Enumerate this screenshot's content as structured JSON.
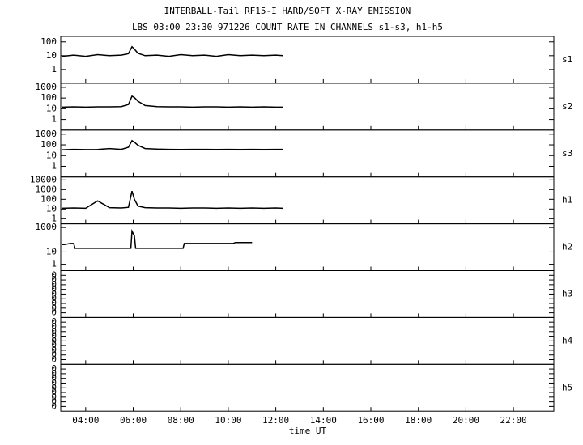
{
  "chart_data": {
    "type": "line",
    "title": "INTERBALL-Tail RF15-I HARD/SOFT X-RAY EMISSION",
    "subtitle": "LBS 03:00 23:30 971226  COUNT RATE IN CHANNELS s1-s3, h1-h5",
    "xlabel": "time UT",
    "xlim": [
      2.95,
      23.7
    ],
    "xticks": [
      {
        "value": 4,
        "label": "04:00"
      },
      {
        "value": 6,
        "label": "06:00"
      },
      {
        "value": 8,
        "label": "08:00"
      },
      {
        "value": 10,
        "label": "10:00"
      },
      {
        "value": 12,
        "label": "12:00"
      },
      {
        "value": 14,
        "label": "14:00"
      },
      {
        "value": 16,
        "label": "16:00"
      },
      {
        "value": 18,
        "label": "18:00"
      },
      {
        "value": 20,
        "label": "20:00"
      },
      {
        "value": 22,
        "label": "22:00"
      }
    ],
    "color": "#000000",
    "panels": [
      {
        "name": "s1",
        "log": true,
        "ylim": [
          0.1,
          250
        ],
        "yticks": [
          100,
          10,
          1
        ],
        "x": [
          3.0,
          3.5,
          4.0,
          4.5,
          5.0,
          5.5,
          5.8,
          5.95,
          6.05,
          6.2,
          6.5,
          7,
          7.5,
          8,
          8.5,
          9,
          9.5,
          10,
          10.5,
          11,
          11.5,
          12,
          12.3
        ],
        "values": [
          9,
          11,
          9,
          12,
          10,
          11,
          14,
          45,
          30,
          15,
          10,
          11,
          9,
          12,
          10,
          11,
          9,
          12,
          10,
          11,
          10,
          11,
          10
        ]
      },
      {
        "name": "s2",
        "log": true,
        "ylim": [
          0.1,
          2400
        ],
        "yticks": [
          1000,
          100,
          10,
          1
        ],
        "x": [
          3.0,
          3.5,
          4.0,
          4.5,
          5.0,
          5.5,
          5.8,
          5.95,
          6.05,
          6.2,
          6.5,
          7,
          7.5,
          8,
          8.5,
          9,
          9.5,
          10,
          10.5,
          11,
          11.5,
          12,
          12.3
        ],
        "values": [
          14,
          15,
          14,
          15,
          15,
          16,
          25,
          150,
          110,
          50,
          20,
          16,
          15,
          15,
          14,
          15,
          15,
          14,
          15,
          14,
          15,
          14,
          14
        ]
      },
      {
        "name": "s3",
        "log": true,
        "ylim": [
          0.1,
          2400
        ],
        "yticks": [
          1000,
          100,
          10,
          1
        ],
        "x": [
          3.0,
          3.5,
          4.0,
          4.5,
          5.0,
          5.5,
          5.8,
          5.95,
          6.05,
          6.2,
          6.5,
          7,
          7.5,
          8,
          8.5,
          9,
          9.5,
          10,
          10.5,
          11,
          11.5,
          12,
          12.3
        ],
        "values": [
          35,
          38,
          36,
          37,
          45,
          38,
          60,
          250,
          180,
          90,
          45,
          40,
          38,
          37,
          38,
          38,
          37,
          38,
          37,
          38,
          37,
          38,
          38
        ]
      },
      {
        "name": "h1",
        "log": true,
        "ylim": [
          0.3,
          20000
        ],
        "yticks": [
          10000,
          1000,
          100,
          10,
          1
        ],
        "x": [
          3.0,
          3.5,
          4.0,
          4.5,
          5.0,
          5.5,
          5.8,
          5.95,
          6.05,
          6.2,
          6.5,
          7,
          7.5,
          8,
          8.5,
          9,
          9.5,
          10,
          10.5,
          11,
          11.5,
          12,
          12.3
        ],
        "values": [
          12,
          13,
          12,
          70,
          14,
          13,
          15,
          700,
          100,
          20,
          14,
          13,
          13,
          12,
          13,
          13,
          12,
          13,
          12,
          13,
          12,
          13,
          12
        ]
      },
      {
        "name": "h2",
        "log": true,
        "ylim": [
          0.3,
          2000
        ],
        "yticks": [
          1000,
          10,
          1
        ],
        "x": [
          3.0,
          3.1,
          3.35,
          3.5,
          3.55,
          5.9,
          5.95,
          6.05,
          6.1,
          8.1,
          8.15,
          10.2,
          10.3,
          10.5,
          10.7,
          10.9,
          11.0
        ],
        "values": [
          40,
          40,
          50,
          50,
          20,
          20,
          500,
          200,
          20,
          20,
          50,
          50,
          60,
          60,
          60,
          60,
          60
        ]
      },
      {
        "name": "h3",
        "log": false,
        "ylim": [
          0,
          0.01
        ],
        "yticks": [
          {
            "value": 0.001,
            "label": "0"
          },
          {
            "value": 0.002,
            "label": "0"
          },
          {
            "value": 0.003,
            "label": "0"
          },
          {
            "value": 0.004,
            "label": "0"
          },
          {
            "value": 0.005,
            "label": "0"
          },
          {
            "value": 0.006,
            "label": "0"
          },
          {
            "value": 0.007,
            "label": "0"
          },
          {
            "value": 0.008,
            "label": "0"
          },
          {
            "value": 0.009,
            "label": "0"
          }
        ]
      },
      {
        "name": "h4",
        "log": false,
        "ylim": [
          0,
          0.01
        ],
        "yticks": [
          {
            "value": 0.001,
            "label": "0"
          },
          {
            "value": 0.002,
            "label": "0"
          },
          {
            "value": 0.003,
            "label": "0"
          },
          {
            "value": 0.004,
            "label": "0"
          },
          {
            "value": 0.005,
            "label": "0"
          },
          {
            "value": 0.006,
            "label": "0"
          },
          {
            "value": 0.007,
            "label": "0"
          },
          {
            "value": 0.008,
            "label": "0"
          },
          {
            "value": 0.009,
            "label": "0"
          }
        ]
      },
      {
        "name": "h5",
        "log": false,
        "ylim": [
          0,
          0.01
        ],
        "yticks": [
          {
            "value": 0.001,
            "label": "0"
          },
          {
            "value": 0.002,
            "label": "0"
          },
          {
            "value": 0.003,
            "label": "0"
          },
          {
            "value": 0.004,
            "label": "0"
          },
          {
            "value": 0.005,
            "label": "0"
          },
          {
            "value": 0.006,
            "label": "0"
          },
          {
            "value": 0.007,
            "label": "0"
          },
          {
            "value": 0.008,
            "label": "0"
          },
          {
            "value": 0.009,
            "label": "0"
          }
        ]
      }
    ]
  }
}
